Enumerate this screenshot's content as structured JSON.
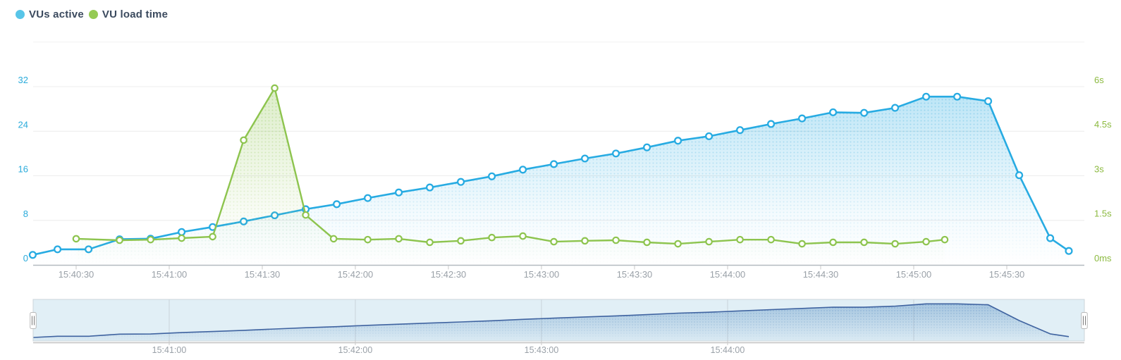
{
  "legend": {
    "items": [
      {
        "label": "VUs active",
        "color": "#58c5e8"
      },
      {
        "label": "VU load time",
        "color": "#95ca53"
      }
    ]
  },
  "chart_data": {
    "type": "line",
    "title": "",
    "grid": "horizontal",
    "x_axis": {
      "main_ticks": [
        "15:40:30",
        "15:41:00",
        "15:41:30",
        "15:42:00",
        "15:42:30",
        "15:43:00",
        "15:43:30",
        "15:44:00",
        "15:44:30",
        "15:45:00",
        "15:45:30"
      ],
      "navigator_labels": [
        "15:41:00",
        "15:42:00",
        "15:43:00",
        "15:44:00"
      ],
      "navigator_gridlines": [
        "15:41:00",
        "15:42:00",
        "15:43:00",
        "15:44:00",
        "15:45:00"
      ],
      "label_color": "#9aa1a8"
    },
    "y_axis_left": {
      "tick_labels": [
        "0",
        "8",
        "16",
        "24",
        "32"
      ],
      "tick_values": [
        0,
        8,
        16,
        24,
        32
      ],
      "range_max": 40,
      "color": "#2aabdb"
    },
    "y_axis_right": {
      "tick_labels": [
        "0ms",
        "1.5s",
        "3s",
        "4.5s",
        "6s"
      ],
      "tick_values": [
        0,
        1.5,
        3,
        4.5,
        6
      ],
      "color": "#8cba40"
    },
    "series": [
      {
        "name": "VUs active",
        "axis": "left",
        "color": "#27abe2",
        "points": [
          [
            "15:40:16",
            1.8
          ],
          [
            "15:40:24",
            2.8
          ],
          [
            "15:40:34",
            2.8
          ],
          [
            "15:40:44",
            4.6
          ],
          [
            "15:40:54",
            4.7
          ],
          [
            "15:41:04",
            5.9
          ],
          [
            "15:41:14",
            6.8
          ],
          [
            "15:41:24",
            7.8
          ],
          [
            "15:41:34",
            8.9
          ],
          [
            "15:41:44",
            10.0
          ],
          [
            "15:41:54",
            10.9
          ],
          [
            "15:42:04",
            12.0
          ],
          [
            "15:42:14",
            13.0
          ],
          [
            "15:42:24",
            13.9
          ],
          [
            "15:42:34",
            14.9
          ],
          [
            "15:42:44",
            15.9
          ],
          [
            "15:42:54",
            17.1
          ],
          [
            "15:43:04",
            18.1
          ],
          [
            "15:43:14",
            19.1
          ],
          [
            "15:43:24",
            20.0
          ],
          [
            "15:43:34",
            21.1
          ],
          [
            "15:43:44",
            22.3
          ],
          [
            "15:43:54",
            23.1
          ],
          [
            "15:44:04",
            24.2
          ],
          [
            "15:44:14",
            25.3
          ],
          [
            "15:44:24",
            26.3
          ],
          [
            "15:44:34",
            27.4
          ],
          [
            "15:44:44",
            27.3
          ],
          [
            "15:44:54",
            28.2
          ],
          [
            "15:45:04",
            30.2
          ],
          [
            "15:45:14",
            30.2
          ],
          [
            "15:45:24",
            29.4
          ],
          [
            "15:45:34",
            16.1
          ],
          [
            "15:45:44",
            4.8
          ],
          [
            "15:45:50",
            2.5
          ]
        ]
      },
      {
        "name": "VU load time",
        "axis": "right",
        "unit": "s",
        "color": "#8dc44e",
        "points": [
          [
            "15:40:30",
            0.88
          ],
          [
            "15:40:44",
            0.83
          ],
          [
            "15:40:54",
            0.85
          ],
          [
            "15:41:04",
            0.9
          ],
          [
            "15:41:14",
            0.95
          ],
          [
            "15:41:24",
            4.2
          ],
          [
            "15:41:34",
            5.95
          ],
          [
            "15:41:44",
            1.68
          ],
          [
            "15:41:53",
            0.88
          ],
          [
            "15:42:04",
            0.85
          ],
          [
            "15:42:14",
            0.88
          ],
          [
            "15:42:24",
            0.76
          ],
          [
            "15:42:34",
            0.81
          ],
          [
            "15:42:44",
            0.92
          ],
          [
            "15:42:54",
            0.97
          ],
          [
            "15:43:04",
            0.78
          ],
          [
            "15:43:14",
            0.81
          ],
          [
            "15:43:24",
            0.83
          ],
          [
            "15:43:34",
            0.76
          ],
          [
            "15:43:44",
            0.71
          ],
          [
            "15:43:54",
            0.78
          ],
          [
            "15:44:04",
            0.85
          ],
          [
            "15:44:14",
            0.85
          ],
          [
            "15:44:24",
            0.71
          ],
          [
            "15:44:34",
            0.76
          ],
          [
            "15:44:44",
            0.76
          ],
          [
            "15:44:54",
            0.71
          ],
          [
            "15:45:04",
            0.78
          ],
          [
            "15:45:10",
            0.85
          ]
        ]
      }
    ],
    "navigator": {
      "mirrors_series": "VUs active",
      "line_color": "#3f63a0",
      "selection_fill": "#e1eff6",
      "selected_range": "full"
    }
  }
}
